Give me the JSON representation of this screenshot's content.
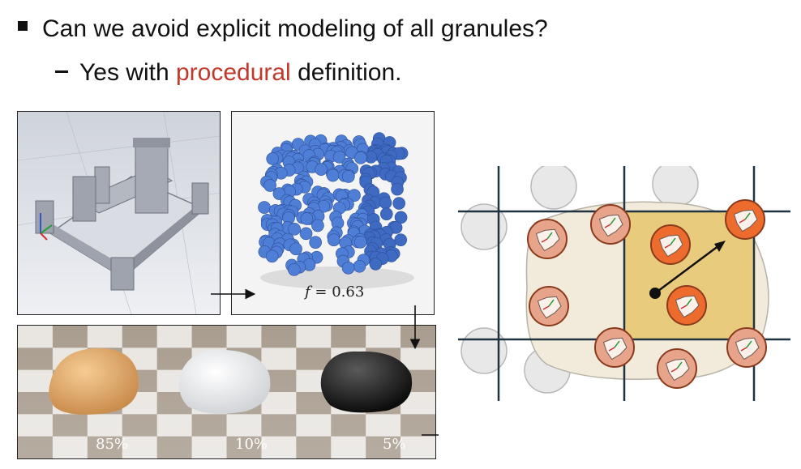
{
  "slide": {
    "bullet1": "Can we avoid explicit modeling of all granules?",
    "bullet2_prefix": "Yes with ",
    "bullet2_highlight": "procedural",
    "bullet2_suffix": " definition.",
    "highlight_color": "#c0392b"
  },
  "figure": {
    "fill_label_var": "f",
    "fill_label_value": "= 0.63",
    "percentages": [
      "85%",
      "10%",
      "5%"
    ]
  }
}
